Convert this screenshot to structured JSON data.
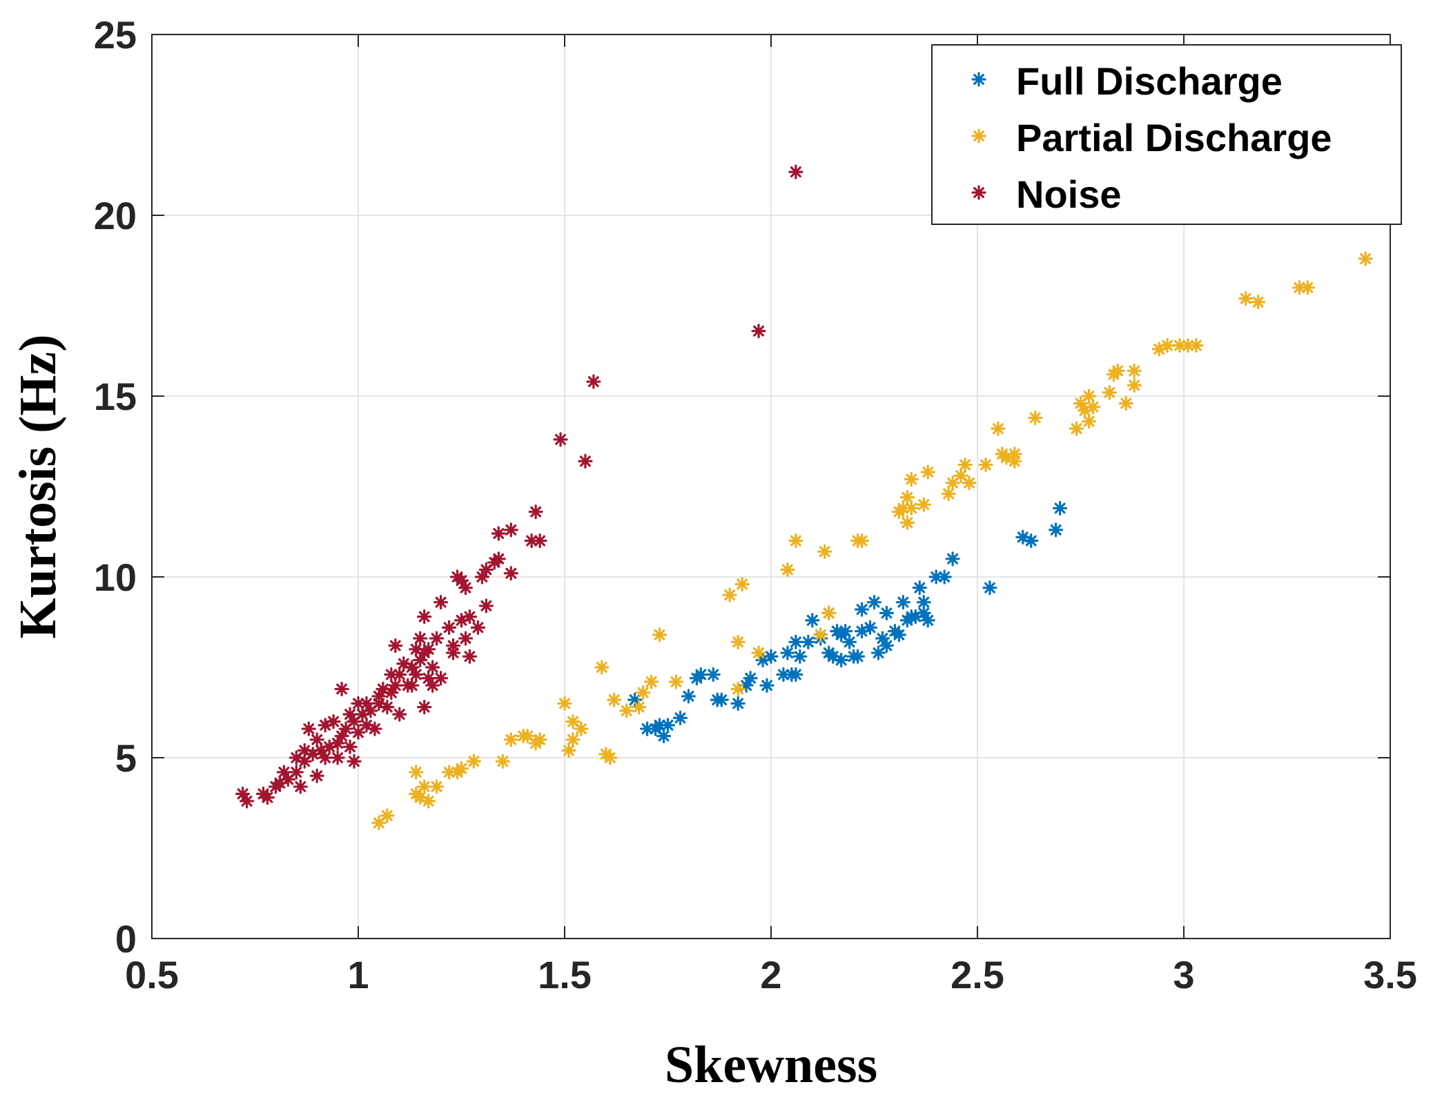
{
  "chart_data": {
    "type": "scatter",
    "title": "",
    "xlabel": "Skewness",
    "ylabel": "Kurtosis (Hz)",
    "xlim": [
      0.5,
      3.5
    ],
    "ylim": [
      0,
      25
    ],
    "xticks": [
      "0.5",
      "1",
      "1.5",
      "2",
      "2.5",
      "3",
      "3.5"
    ],
    "yticks": [
      "0",
      "5",
      "10",
      "15",
      "20",
      "25"
    ],
    "grid": true,
    "legend_position": "top-right",
    "series": [
      {
        "name": "Full Discharge",
        "color": "#0072BD",
        "marker": "asterisk",
        "points": [
          [
            1.67,
            6.6
          ],
          [
            1.7,
            5.8
          ],
          [
            1.72,
            5.8
          ],
          [
            1.73,
            5.9
          ],
          [
            1.74,
            5.6
          ],
          [
            1.75,
            5.9
          ],
          [
            1.78,
            6.1
          ],
          [
            1.8,
            6.7
          ],
          [
            1.82,
            7.2
          ],
          [
            1.83,
            7.3
          ],
          [
            1.86,
            7.3
          ],
          [
            1.87,
            6.6
          ],
          [
            1.88,
            6.6
          ],
          [
            1.92,
            6.5
          ],
          [
            1.94,
            7.0
          ],
          [
            1.95,
            7.2
          ],
          [
            1.98,
            7.7
          ],
          [
            1.99,
            7.0
          ],
          [
            2.0,
            7.8
          ],
          [
            2.03,
            7.3
          ],
          [
            2.04,
            7.9
          ],
          [
            2.05,
            7.3
          ],
          [
            2.06,
            8.2
          ],
          [
            2.06,
            7.3
          ],
          [
            2.07,
            7.8
          ],
          [
            2.09,
            8.2
          ],
          [
            2.1,
            8.8
          ],
          [
            2.12,
            8.3
          ],
          [
            2.14,
            9.0
          ],
          [
            2.14,
            7.9
          ],
          [
            2.15,
            7.8
          ],
          [
            2.16,
            8.5
          ],
          [
            2.17,
            8.4
          ],
          [
            2.17,
            7.7
          ],
          [
            2.18,
            8.5
          ],
          [
            2.19,
            8.2
          ],
          [
            2.2,
            7.8
          ],
          [
            2.21,
            7.8
          ],
          [
            2.22,
            9.1
          ],
          [
            2.22,
            8.5
          ],
          [
            2.24,
            8.6
          ],
          [
            2.25,
            9.3
          ],
          [
            2.26,
            7.9
          ],
          [
            2.27,
            8.3
          ],
          [
            2.28,
            9.0
          ],
          [
            2.28,
            8.1
          ],
          [
            2.3,
            8.5
          ],
          [
            2.31,
            8.4
          ],
          [
            2.32,
            9.3
          ],
          [
            2.33,
            8.8
          ],
          [
            2.34,
            8.9
          ],
          [
            2.35,
            8.9
          ],
          [
            2.36,
            9.7
          ],
          [
            2.37,
            9.3
          ],
          [
            2.37,
            9.0
          ],
          [
            2.38,
            8.8
          ],
          [
            2.4,
            10.0
          ],
          [
            2.42,
            10.0
          ],
          [
            2.44,
            10.5
          ],
          [
            2.53,
            9.7
          ],
          [
            2.61,
            11.1
          ],
          [
            2.63,
            11.0
          ],
          [
            2.69,
            11.3
          ],
          [
            2.7,
            11.9
          ]
        ]
      },
      {
        "name": "Partial Discharge",
        "color": "#EDB120",
        "marker": "asterisk",
        "points": [
          [
            1.05,
            3.2
          ],
          [
            1.07,
            3.4
          ],
          [
            1.14,
            4.6
          ],
          [
            1.14,
            4.0
          ],
          [
            1.15,
            3.9
          ],
          [
            1.16,
            4.2
          ],
          [
            1.17,
            3.8
          ],
          [
            1.19,
            4.2
          ],
          [
            1.22,
            4.6
          ],
          [
            1.24,
            4.6
          ],
          [
            1.25,
            4.7
          ],
          [
            1.28,
            4.9
          ],
          [
            1.35,
            4.9
          ],
          [
            1.37,
            5.5
          ],
          [
            1.4,
            5.6
          ],
          [
            1.41,
            5.6
          ],
          [
            1.43,
            5.4
          ],
          [
            1.44,
            5.5
          ],
          [
            1.5,
            6.5
          ],
          [
            1.51,
            5.2
          ],
          [
            1.52,
            5.5
          ],
          [
            1.52,
            6.0
          ],
          [
            1.54,
            5.8
          ],
          [
            1.59,
            7.5
          ],
          [
            1.6,
            5.1
          ],
          [
            1.61,
            5.0
          ],
          [
            1.62,
            6.6
          ],
          [
            1.65,
            6.3
          ],
          [
            1.68,
            6.4
          ],
          [
            1.69,
            6.8
          ],
          [
            1.71,
            7.1
          ],
          [
            1.73,
            8.4
          ],
          [
            1.77,
            7.1
          ],
          [
            1.9,
            9.5
          ],
          [
            1.92,
            8.2
          ],
          [
            1.92,
            6.9
          ],
          [
            1.93,
            9.8
          ],
          [
            1.97,
            7.9
          ],
          [
            2.04,
            10.2
          ],
          [
            2.06,
            11.0
          ],
          [
            2.12,
            8.4
          ],
          [
            2.13,
            10.7
          ],
          [
            2.14,
            9.0
          ],
          [
            2.21,
            11.0
          ],
          [
            2.22,
            11.0
          ],
          [
            2.31,
            11.8
          ],
          [
            2.32,
            11.9
          ],
          [
            2.33,
            12.2
          ],
          [
            2.33,
            11.5
          ],
          [
            2.34,
            12.7
          ],
          [
            2.34,
            11.9
          ],
          [
            2.37,
            12.0
          ],
          [
            2.38,
            12.9
          ],
          [
            2.43,
            12.3
          ],
          [
            2.44,
            12.6
          ],
          [
            2.46,
            12.8
          ],
          [
            2.47,
            13.1
          ],
          [
            2.48,
            12.6
          ],
          [
            2.52,
            13.1
          ],
          [
            2.55,
            14.1
          ],
          [
            2.56,
            13.4
          ],
          [
            2.57,
            13.3
          ],
          [
            2.59,
            13.4
          ],
          [
            2.59,
            13.2
          ],
          [
            2.64,
            14.4
          ],
          [
            2.74,
            14.1
          ],
          [
            2.75,
            14.8
          ],
          [
            2.76,
            14.6
          ],
          [
            2.77,
            15.0
          ],
          [
            2.77,
            14.3
          ],
          [
            2.78,
            14.7
          ],
          [
            2.82,
            15.1
          ],
          [
            2.83,
            15.6
          ],
          [
            2.84,
            15.7
          ],
          [
            2.86,
            14.8
          ],
          [
            2.88,
            15.7
          ],
          [
            2.88,
            15.3
          ],
          [
            2.94,
            16.3
          ],
          [
            2.96,
            16.4
          ],
          [
            2.99,
            16.4
          ],
          [
            3.01,
            16.4
          ],
          [
            3.03,
            16.4
          ],
          [
            3.15,
            17.7
          ],
          [
            3.18,
            17.6
          ],
          [
            3.28,
            18.0
          ],
          [
            3.3,
            18.0
          ],
          [
            3.44,
            18.8
          ]
        ]
      },
      {
        "name": "Noise",
        "color": "#A2142F",
        "marker": "asterisk",
        "points": [
          [
            0.72,
            4.0
          ],
          [
            0.73,
            3.8
          ],
          [
            0.77,
            4.0
          ],
          [
            0.78,
            3.9
          ],
          [
            0.8,
            4.2
          ],
          [
            0.81,
            4.3
          ],
          [
            0.82,
            4.6
          ],
          [
            0.83,
            4.4
          ],
          [
            0.85,
            5.0
          ],
          [
            0.85,
            4.6
          ],
          [
            0.86,
            4.2
          ],
          [
            0.87,
            5.2
          ],
          [
            0.87,
            4.9
          ],
          [
            0.88,
            5.8
          ],
          [
            0.89,
            5.1
          ],
          [
            0.9,
            5.5
          ],
          [
            0.9,
            4.5
          ],
          [
            0.91,
            5.2
          ],
          [
            0.92,
            5.9
          ],
          [
            0.92,
            5.0
          ],
          [
            0.93,
            5.3
          ],
          [
            0.94,
            6.0
          ],
          [
            0.95,
            5.4
          ],
          [
            0.95,
            5.0
          ],
          [
            0.96,
            6.9
          ],
          [
            0.96,
            5.6
          ],
          [
            0.97,
            5.8
          ],
          [
            0.98,
            6.2
          ],
          [
            0.98,
            5.3
          ],
          [
            0.99,
            6.0
          ],
          [
            0.99,
            4.9
          ],
          [
            1.0,
            6.5
          ],
          [
            1.0,
            5.7
          ],
          [
            1.01,
            6.2
          ],
          [
            1.02,
            6.5
          ],
          [
            1.02,
            5.9
          ],
          [
            1.03,
            6.3
          ],
          [
            1.04,
            5.8
          ],
          [
            1.05,
            6.7
          ],
          [
            1.05,
            6.5
          ],
          [
            1.06,
            6.9
          ],
          [
            1.07,
            6.4
          ],
          [
            1.08,
            7.3
          ],
          [
            1.08,
            6.8
          ],
          [
            1.09,
            8.1
          ],
          [
            1.09,
            7.0
          ],
          [
            1.1,
            7.3
          ],
          [
            1.1,
            6.2
          ],
          [
            1.11,
            7.6
          ],
          [
            1.12,
            7.0
          ],
          [
            1.13,
            7.5
          ],
          [
            1.13,
            7.0
          ],
          [
            1.14,
            8.0
          ],
          [
            1.14,
            7.3
          ],
          [
            1.15,
            8.3
          ],
          [
            1.15,
            7.7
          ],
          [
            1.16,
            8.9
          ],
          [
            1.16,
            7.9
          ],
          [
            1.16,
            6.4
          ],
          [
            1.17,
            8.0
          ],
          [
            1.17,
            7.2
          ],
          [
            1.18,
            7.5
          ],
          [
            1.18,
            7.0
          ],
          [
            1.19,
            8.3
          ],
          [
            1.2,
            9.3
          ],
          [
            1.2,
            7.2
          ],
          [
            1.22,
            8.6
          ],
          [
            1.23,
            8.1
          ],
          [
            1.23,
            7.9
          ],
          [
            1.24,
            10.0
          ],
          [
            1.25,
            9.9
          ],
          [
            1.25,
            8.8
          ],
          [
            1.26,
            9.7
          ],
          [
            1.26,
            8.3
          ],
          [
            1.27,
            8.9
          ],
          [
            1.27,
            7.8
          ],
          [
            1.29,
            8.6
          ],
          [
            1.3,
            10.0
          ],
          [
            1.31,
            10.2
          ],
          [
            1.31,
            9.2
          ],
          [
            1.33,
            10.4
          ],
          [
            1.34,
            11.2
          ],
          [
            1.34,
            10.5
          ],
          [
            1.37,
            11.3
          ],
          [
            1.37,
            10.1
          ],
          [
            1.42,
            11.0
          ],
          [
            1.43,
            11.8
          ],
          [
            1.44,
            11.0
          ],
          [
            1.49,
            13.8
          ],
          [
            1.55,
            13.2
          ],
          [
            1.57,
            15.4
          ],
          [
            1.97,
            16.8
          ],
          [
            2.06,
            21.2
          ]
        ]
      }
    ]
  }
}
